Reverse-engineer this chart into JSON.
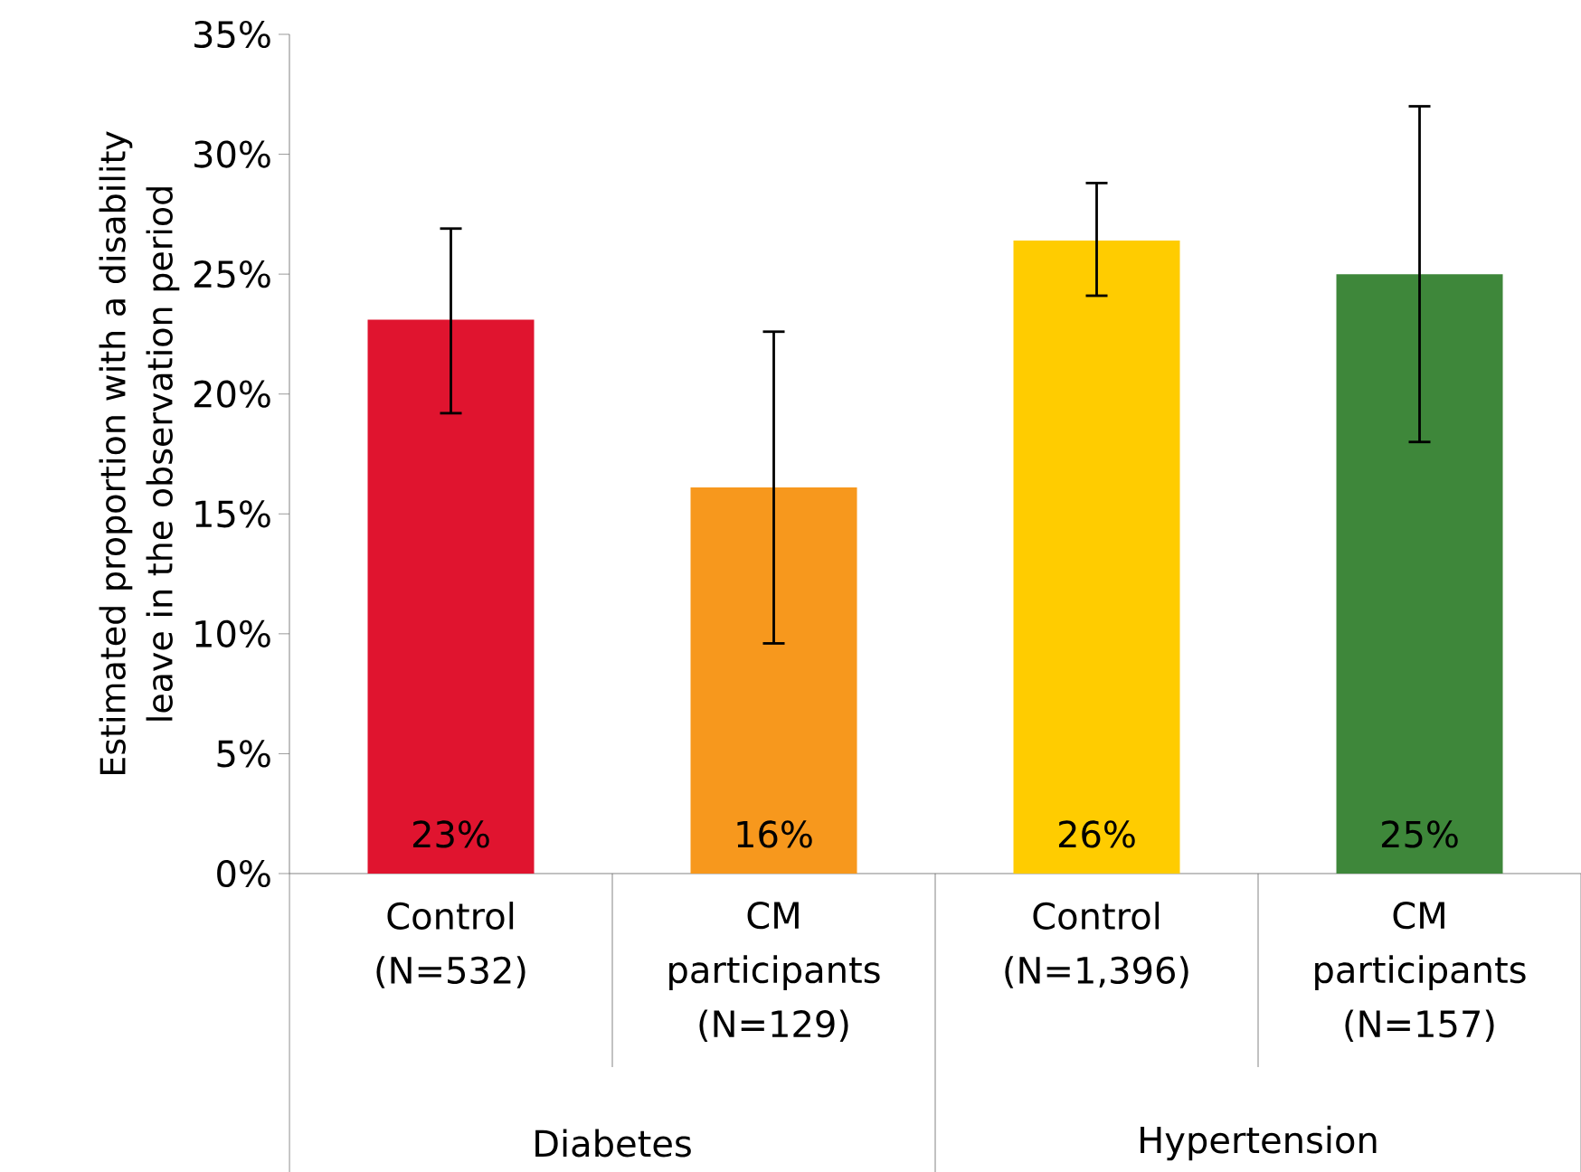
{
  "chart_data": {
    "type": "bar",
    "ylabel": "Estimated proportion with a disability leave in the observation period",
    "categories": [
      "Control (N=532)",
      "CM participants (N=129)",
      "Control (N=1,396)",
      "CM participants (N=157)"
    ],
    "values": [
      23.1,
      16.1,
      26.4,
      25.0
    ],
    "colors": [
      "#e0142f",
      "#f7981d",
      "#ffcc00",
      "#3e873a"
    ],
    "errors": [
      [
        19.2,
        26.9
      ],
      [
        9.6,
        22.6
      ],
      [
        24.1,
        28.8
      ],
      [
        18.0,
        32.0
      ]
    ],
    "value_labels": [
      "23%",
      "16%",
      "26%",
      "25%"
    ],
    "ylim": [
      0,
      35
    ],
    "yticks": [
      {
        "value": 0,
        "label": "0%"
      },
      {
        "value": 5,
        "label": "5%"
      },
      {
        "value": 10,
        "label": "10%"
      },
      {
        "value": 15,
        "label": "15%"
      },
      {
        "value": 20,
        "label": "20%"
      },
      {
        "value": 25,
        "label": "25%"
      },
      {
        "value": 30,
        "label": "30%"
      },
      {
        "value": 35,
        "label": "35%"
      }
    ],
    "annotations": [
      "Diabetes",
      "Hypertension"
    ]
  }
}
